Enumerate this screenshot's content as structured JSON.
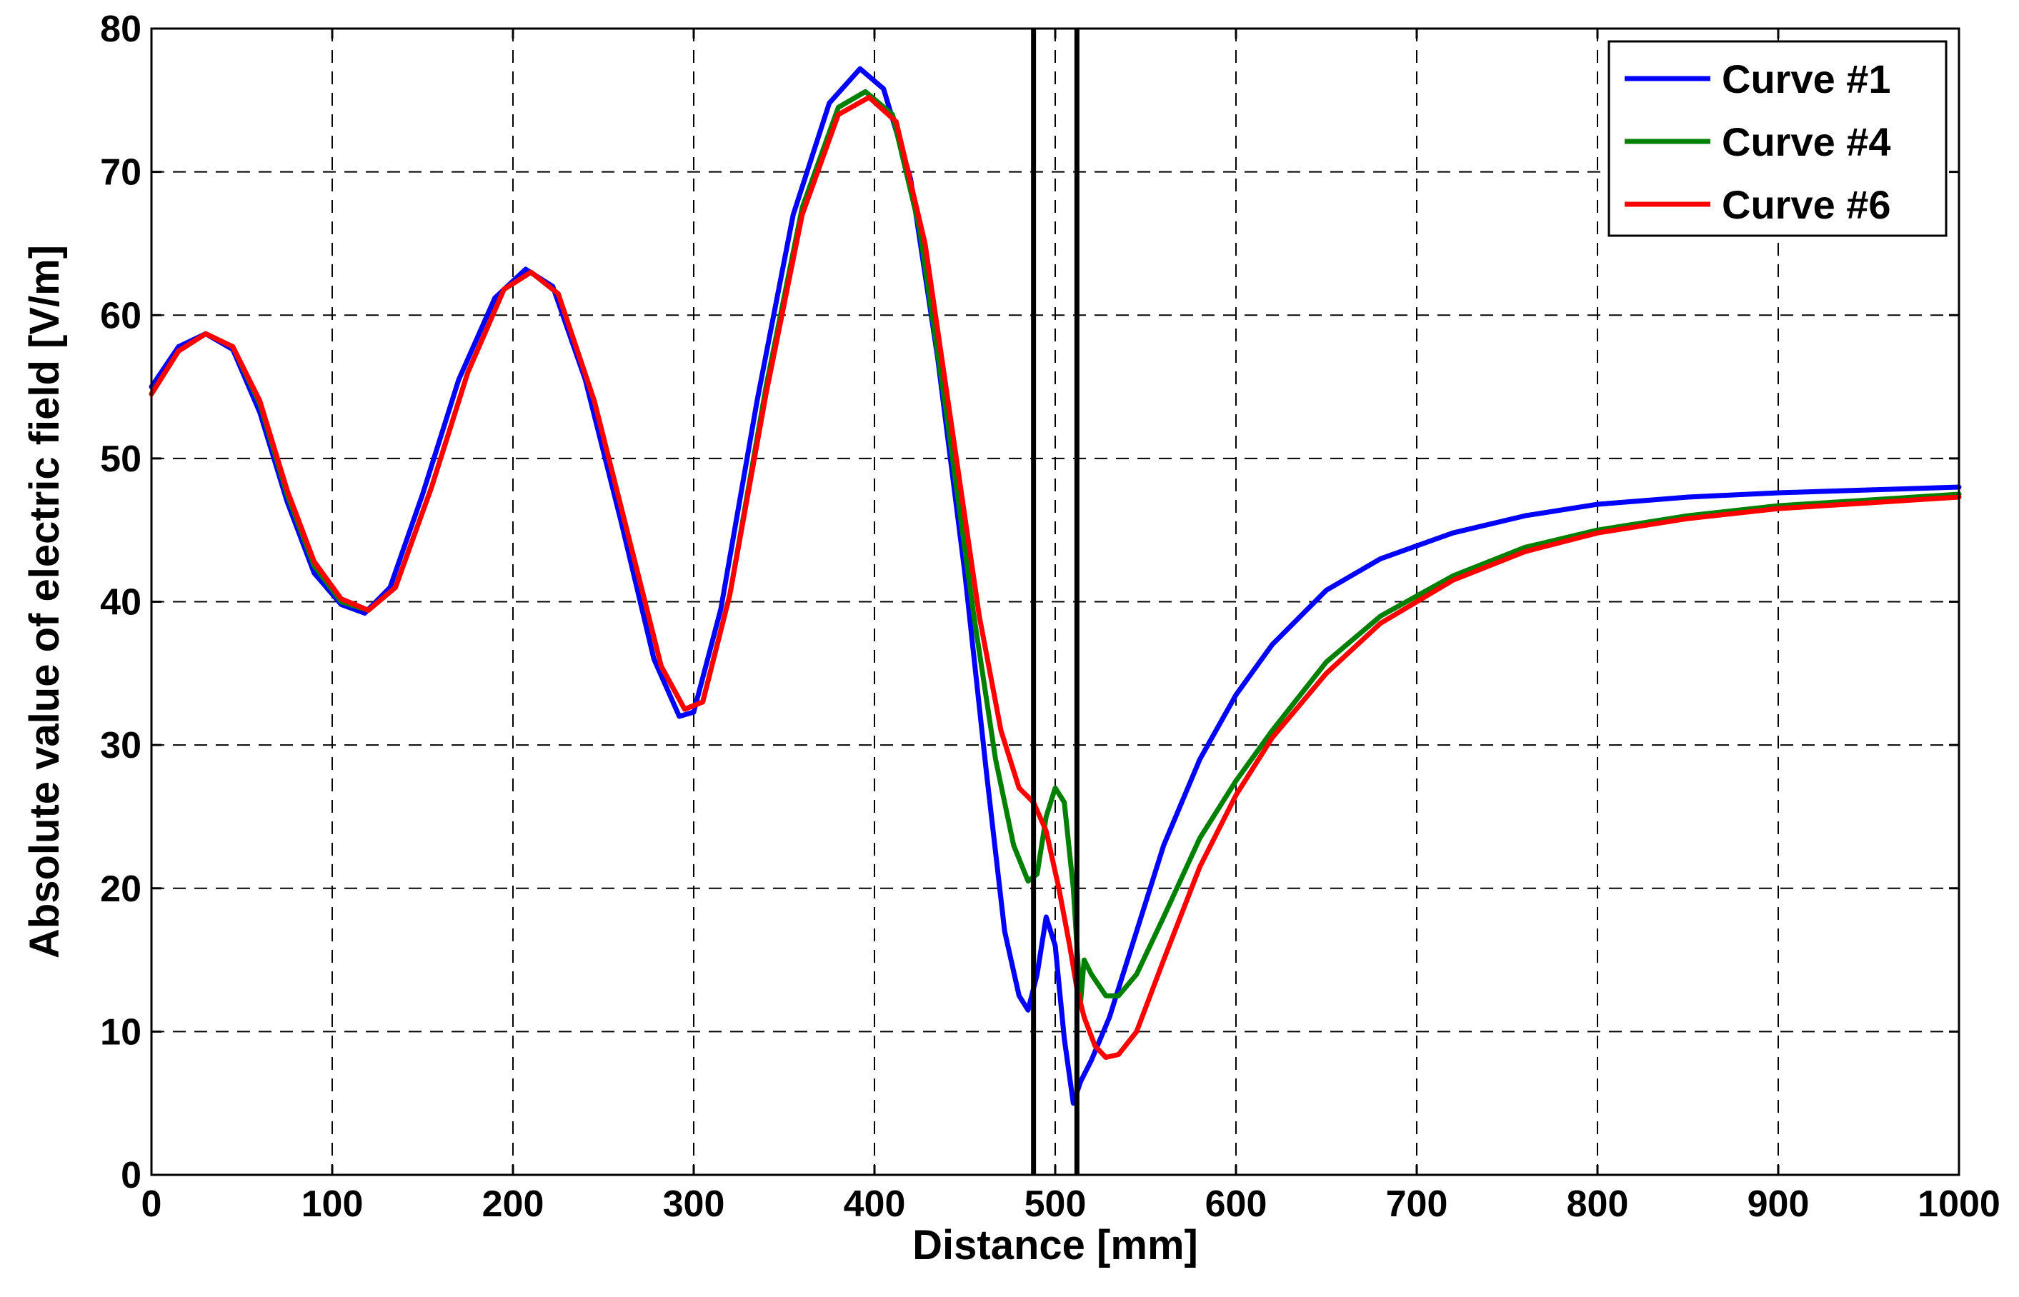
{
  "chart_data": {
    "type": "line",
    "title": "",
    "xlabel": "Distance [mm]",
    "ylabel": "Absolute value of electric field [V/m]",
    "xlim": [
      0,
      1000
    ],
    "ylim": [
      0,
      80
    ],
    "xticks": [
      "0",
      "100",
      "200",
      "300",
      "400",
      "500",
      "600",
      "700",
      "800",
      "900",
      "1000"
    ],
    "yticks": [
      "0",
      "10",
      "20",
      "30",
      "40",
      "50",
      "60",
      "70",
      "80"
    ],
    "grid": true,
    "legend_position": "top-right",
    "vertical_markers": [
      488,
      512
    ],
    "series": [
      {
        "name": "Curve #1",
        "color": "#0000ff",
        "points": [
          [
            0,
            55
          ],
          [
            15,
            57.8
          ],
          [
            30,
            58.7
          ],
          [
            45,
            57.6
          ],
          [
            60,
            53.2
          ],
          [
            75,
            47
          ],
          [
            90,
            42
          ],
          [
            105,
            39.8
          ],
          [
            118,
            39.2
          ],
          [
            132,
            41
          ],
          [
            150,
            47.5
          ],
          [
            170,
            55.5
          ],
          [
            190,
            61.2
          ],
          [
            207,
            63.2
          ],
          [
            222,
            62
          ],
          [
            240,
            55.5
          ],
          [
            260,
            45.5
          ],
          [
            278,
            36
          ],
          [
            292,
            32
          ],
          [
            300,
            32.3
          ],
          [
            315,
            39.5
          ],
          [
            335,
            54
          ],
          [
            355,
            67
          ],
          [
            375,
            74.8
          ],
          [
            392,
            77.2
          ],
          [
            405,
            75.8
          ],
          [
            420,
            69.5
          ],
          [
            435,
            57
          ],
          [
            450,
            42
          ],
          [
            462,
            28
          ],
          [
            472,
            17
          ],
          [
            480,
            12.5
          ],
          [
            485,
            11.5
          ],
          [
            490,
            14
          ],
          [
            495,
            18
          ],
          [
            500,
            16
          ],
          [
            505,
            9.5
          ],
          [
            510,
            5
          ],
          [
            514,
            6.5
          ],
          [
            520,
            8
          ],
          [
            530,
            11
          ],
          [
            545,
            17
          ],
          [
            560,
            23
          ],
          [
            580,
            29
          ],
          [
            600,
            33.5
          ],
          [
            620,
            37
          ],
          [
            650,
            40.8
          ],
          [
            680,
            43
          ],
          [
            720,
            44.8
          ],
          [
            760,
            46
          ],
          [
            800,
            46.8
          ],
          [
            850,
            47.3
          ],
          [
            900,
            47.6
          ],
          [
            950,
            47.8
          ],
          [
            1000,
            48
          ]
        ]
      },
      {
        "name": "Curve #4",
        "color": "#008000",
        "points": [
          [
            0,
            54.5
          ],
          [
            15,
            57.5
          ],
          [
            30,
            58.7
          ],
          [
            45,
            57.8
          ],
          [
            60,
            53.8
          ],
          [
            75,
            47.5
          ],
          [
            90,
            42.5
          ],
          [
            105,
            40
          ],
          [
            120,
            39.4
          ],
          [
            135,
            41
          ],
          [
            155,
            48
          ],
          [
            175,
            56
          ],
          [
            195,
            61.8
          ],
          [
            210,
            63
          ],
          [
            225,
            61.5
          ],
          [
            245,
            54
          ],
          [
            265,
            44
          ],
          [
            282,
            35.5
          ],
          [
            295,
            32.5
          ],
          [
            305,
            33
          ],
          [
            320,
            40.5
          ],
          [
            340,
            55
          ],
          [
            360,
            67.5
          ],
          [
            380,
            74.5
          ],
          [
            395,
            75.6
          ],
          [
            410,
            74
          ],
          [
            425,
            66
          ],
          [
            440,
            53
          ],
          [
            455,
            39
          ],
          [
            467,
            29
          ],
          [
            477,
            23
          ],
          [
            485,
            20.5
          ],
          [
            490,
            21
          ],
          [
            495,
            25
          ],
          [
            500,
            27
          ],
          [
            505,
            26
          ],
          [
            510,
            20
          ],
          [
            514,
            12
          ],
          [
            516,
            15
          ],
          [
            520,
            14
          ],
          [
            528,
            12.5
          ],
          [
            535,
            12.5
          ],
          [
            545,
            14
          ],
          [
            560,
            18
          ],
          [
            580,
            23.5
          ],
          [
            600,
            27.5
          ],
          [
            620,
            31
          ],
          [
            650,
            35.8
          ],
          [
            680,
            39
          ],
          [
            720,
            41.8
          ],
          [
            760,
            43.8
          ],
          [
            800,
            45
          ],
          [
            850,
            46
          ],
          [
            900,
            46.7
          ],
          [
            950,
            47.1
          ],
          [
            1000,
            47.5
          ]
        ]
      },
      {
        "name": "Curve #6",
        "color": "#ff0000",
        "points": [
          [
            0,
            54.5
          ],
          [
            15,
            57.5
          ],
          [
            30,
            58.7
          ],
          [
            45,
            57.8
          ],
          [
            60,
            54
          ],
          [
            75,
            47.8
          ],
          [
            90,
            42.8
          ],
          [
            105,
            40.2
          ],
          [
            120,
            39.4
          ],
          [
            135,
            41
          ],
          [
            155,
            48
          ],
          [
            175,
            56
          ],
          [
            195,
            61.8
          ],
          [
            210,
            63
          ],
          [
            225,
            61.5
          ],
          [
            245,
            54
          ],
          [
            265,
            44
          ],
          [
            282,
            35.5
          ],
          [
            295,
            32.5
          ],
          [
            305,
            33
          ],
          [
            320,
            40.5
          ],
          [
            340,
            54.5
          ],
          [
            360,
            67
          ],
          [
            380,
            74
          ],
          [
            397,
            75.2
          ],
          [
            412,
            73.5
          ],
          [
            428,
            65
          ],
          [
            443,
            52
          ],
          [
            458,
            39
          ],
          [
            470,
            31
          ],
          [
            480,
            27
          ],
          [
            488,
            26
          ],
          [
            495,
            24
          ],
          [
            502,
            20
          ],
          [
            508,
            16
          ],
          [
            512,
            13
          ],
          [
            516,
            11
          ],
          [
            522,
            9
          ],
          [
            528,
            8.2
          ],
          [
            535,
            8.4
          ],
          [
            545,
            10
          ],
          [
            560,
            15
          ],
          [
            580,
            21.5
          ],
          [
            600,
            26.5
          ],
          [
            620,
            30.5
          ],
          [
            650,
            35
          ],
          [
            680,
            38.5
          ],
          [
            720,
            41.5
          ],
          [
            760,
            43.5
          ],
          [
            800,
            44.8
          ],
          [
            850,
            45.8
          ],
          [
            900,
            46.5
          ],
          [
            950,
            46.9
          ],
          [
            1000,
            47.3
          ]
        ]
      }
    ]
  }
}
